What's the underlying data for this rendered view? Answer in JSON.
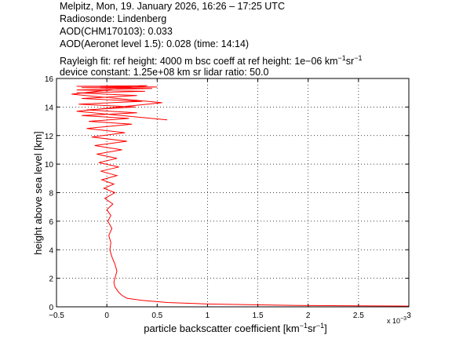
{
  "header": {
    "line1": "Melpitz, Mon, 19. January 2026, 16:26 – 17:25 UTC",
    "line2": "Radiosonde: Lindenberg",
    "line3": "AOD(CHM170103): 0.033",
    "line4": "AOD(Aeronet level 1.5): 0.028   (time: 14:14)",
    "line5_a": "Rayleigh fit:     ref height: 4000 m     bsc coeff at ref height: 1e−06 km",
    "line5_sup1": "−1",
    "line5_b": "sr",
    "line5_sup2": "−1",
    "line6": "device constant: 1.25e+08 km sr     lidar ratio: 50.0"
  },
  "chart_data": {
    "type": "line",
    "xlabel_main": "particle backscatter coefficient [km",
    "xlabel_sup1": "−1",
    "xlabel_mid": "sr",
    "xlabel_sup2": "−1",
    "xlabel_end": "]",
    "ylabel": "height above sea level [km]",
    "x_multiplier": "x 10",
    "x_multiplier_exp": "−3",
    "xlim": [
      -0.5,
      3
    ],
    "ylim": [
      0,
      16
    ],
    "xticks": [
      -0.5,
      0,
      0.5,
      1,
      1.5,
      2,
      2.5,
      3
    ],
    "xtick_labels": [
      "−0.5",
      "0",
      "0.5",
      "1",
      "1.5",
      "2",
      "2.5",
      "3"
    ],
    "yticks": [
      0,
      2,
      4,
      6,
      8,
      10,
      12,
      14,
      16
    ],
    "ytick_labels": [
      "0",
      "2",
      "4",
      "6",
      "8",
      "10",
      "12",
      "14",
      "16"
    ],
    "grid": true,
    "line_color": "#ff0000",
    "series": [
      {
        "x": [
          3.0,
          2.5,
          1.9,
          1.4,
          1.0,
          0.6,
          0.35,
          0.2,
          0.15,
          0.12,
          0.1,
          0.08,
          0.07,
          0.08,
          0.1,
          0.08,
          0.05,
          0.03,
          0.04,
          0.02,
          0.05,
          0.01,
          0.04,
          0.0,
          0.06,
          -0.02,
          0.08,
          -0.03,
          0.07,
          -0.05,
          0.1,
          -0.06,
          0.12,
          -0.08,
          0.1,
          -0.1,
          0.15,
          -0.12,
          0.2,
          -0.15,
          0.18,
          -0.2,
          0.25,
          -0.18,
          0.22,
          -0.25,
          0.3,
          -0.2,
          0.28,
          -0.28,
          0.35,
          -0.25,
          0.3,
          -0.3,
          0.38,
          -0.3,
          0.45,
          -0.25,
          0.5,
          -0.3,
          0.4,
          -0.35,
          0.55,
          -0.3,
          0.6
        ],
        "y": [
          0.05,
          0.07,
          0.1,
          0.15,
          0.2,
          0.3,
          0.45,
          0.6,
          0.8,
          1.0,
          1.2,
          1.4,
          1.7,
          2.0,
          2.5,
          3.0,
          3.5,
          4.0,
          4.5,
          5.0,
          5.5,
          6.0,
          6.4,
          6.8,
          7.2,
          7.6,
          8.0,
          8.3,
          8.6,
          8.9,
          9.2,
          9.5,
          9.8,
          10.1,
          10.4,
          10.7,
          11.0,
          11.3,
          11.6,
          11.9,
          12.2,
          12.5,
          12.8,
          13.0,
          13.2,
          13.4,
          13.6,
          13.8,
          14.0,
          14.2,
          14.4,
          14.6,
          14.8,
          15.0,
          15.1,
          15.2,
          15.3,
          15.35,
          15.4,
          15.45,
          15.5,
          14.9,
          14.3,
          13.7,
          13.1
        ]
      }
    ]
  }
}
